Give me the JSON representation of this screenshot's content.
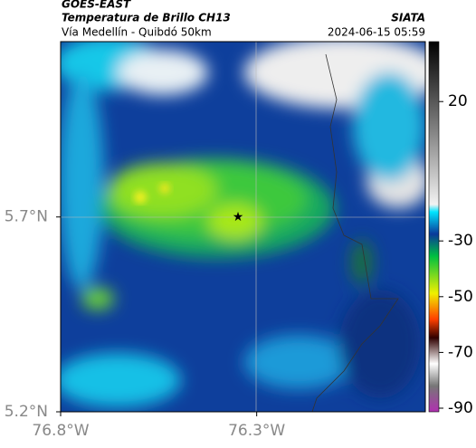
{
  "header": {
    "source": "GOES-EAST",
    "title": "Temperatura de Brillo CH13",
    "subtitle": "Vía Medellín - Quibdó 50km",
    "org": "SIATA",
    "datetime": "2024-06-15 05:59"
  },
  "map": {
    "latlim": [
      5.2,
      6.15
    ],
    "lonlim": [
      -76.8,
      -75.87
    ],
    "lat_ticks": [
      {
        "value": 5.7,
        "label": "5.7°N"
      },
      {
        "value": 5.2,
        "label": "5.2°N"
      }
    ],
    "lon_ticks": [
      {
        "value": -76.8,
        "label": "76.8°W"
      },
      {
        "value": -76.3,
        "label": "76.3°W"
      }
    ]
  },
  "colorbar": {
    "lim": [
      -91.3,
      41.5
    ],
    "ticks": [
      20,
      -30,
      -50,
      -70,
      -90
    ]
  }
}
